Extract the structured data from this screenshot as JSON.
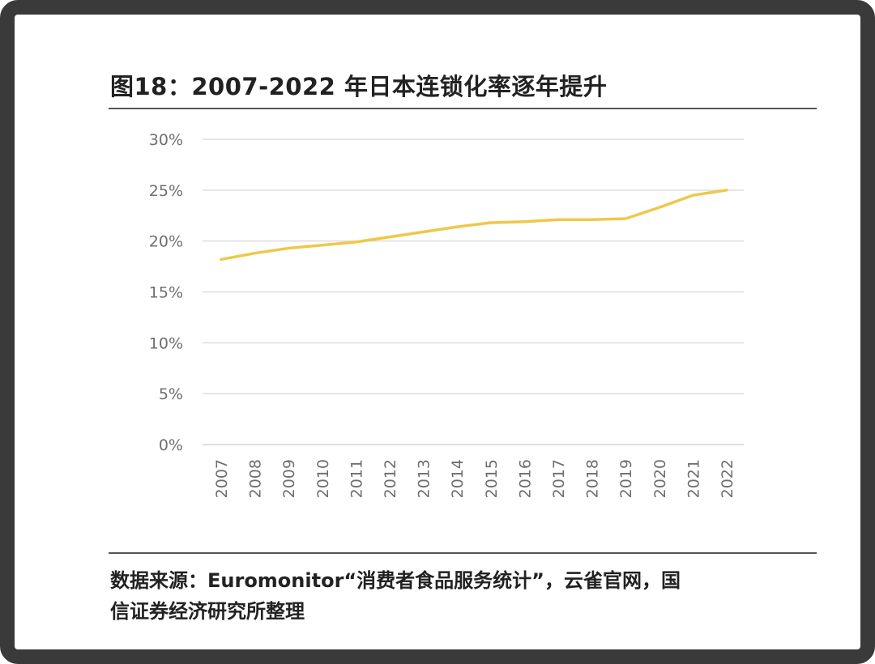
{
  "title": "图18：2007-2022 年日本连锁化率逐年提升",
  "source_line1": "数据来源：Euromonitor“消费者食品服务统计”，云雀官网，国",
  "source_line2": "信证券经济研究所整理",
  "colors": {
    "line": "#efc84a",
    "grid": "#dddddd",
    "tick": "#6e6e6e"
  },
  "chart_data": {
    "type": "line",
    "title": "",
    "xlabel": "",
    "ylabel": "",
    "categories": [
      "2007",
      "2008",
      "2009",
      "2010",
      "2011",
      "2012",
      "2013",
      "2014",
      "2015",
      "2016",
      "2017",
      "2018",
      "2019",
      "2020",
      "2021",
      "2022"
    ],
    "values": [
      18.2,
      18.8,
      19.3,
      19.6,
      19.9,
      20.4,
      20.9,
      21.4,
      21.8,
      21.9,
      22.1,
      22.1,
      22.2,
      23.3,
      24.5,
      25.0
    ],
    "ylim": [
      0,
      30
    ],
    "yticks": [
      "0%",
      "5%",
      "10%",
      "15%",
      "20%",
      "25%",
      "30%"
    ],
    "grid": true,
    "legend": "none"
  }
}
